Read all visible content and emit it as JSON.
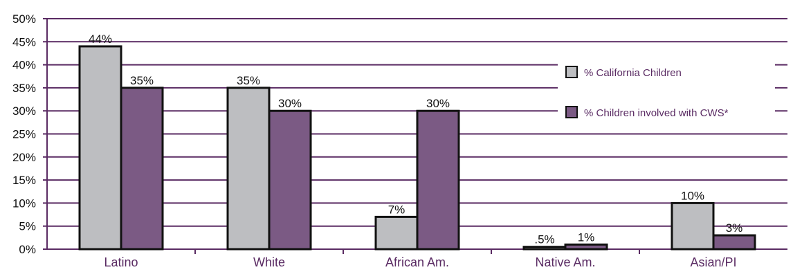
{
  "chart_data": {
    "type": "bar",
    "categories": [
      "Latino",
      "White",
      "African Am.",
      "Native Am.",
      "Asian/PI"
    ],
    "series": [
      {
        "name": "% California Children",
        "values": [
          44,
          35,
          7,
          0.5,
          10
        ],
        "labels": [
          "44%",
          "35%",
          "7%",
          ".5%",
          "10%"
        ],
        "color": "#bdbec1"
      },
      {
        "name": "% Children involved with CWS*",
        "values": [
          35,
          30,
          30,
          1,
          3
        ],
        "labels": [
          "35%",
          "30%",
          "30%",
          "1%",
          "3%"
        ],
        "color": "#7b5a84"
      }
    ],
    "ylim": [
      0,
      50
    ],
    "yticks": [
      0,
      5,
      10,
      15,
      20,
      25,
      30,
      35,
      40,
      45,
      50
    ],
    "ytick_labels": [
      "0%",
      "5%",
      "10%",
      "15%",
      "20%",
      "25%",
      "30%",
      "35%",
      "40%",
      "45%",
      "50%"
    ],
    "grid": true,
    "grid_color": "#5a2b63",
    "legend_position": "right",
    "title": "",
    "xlabel": "",
    "ylabel": ""
  }
}
